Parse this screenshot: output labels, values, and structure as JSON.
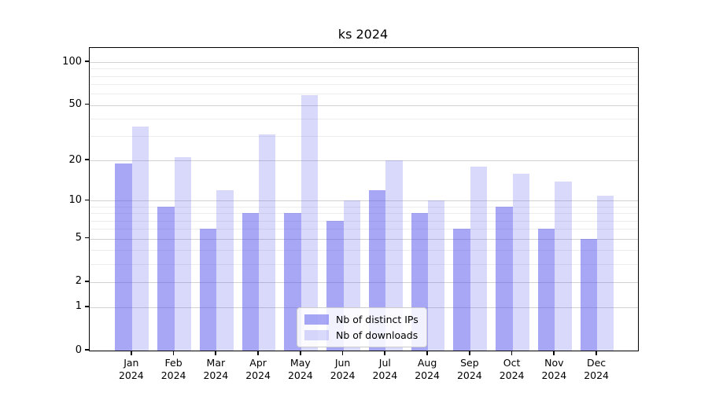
{
  "chart_data": {
    "type": "bar",
    "title": "ks 2024",
    "categories": [
      "Jan 2024",
      "Feb 2024",
      "Mar 2024",
      "Apr 2024",
      "May 2024",
      "Jun 2024",
      "Jul 2024",
      "Aug 2024",
      "Sep 2024",
      "Oct 2024",
      "Nov 2024",
      "Dec 2024"
    ],
    "months": [
      "Jan",
      "Feb",
      "Mar",
      "Apr",
      "May",
      "Jun",
      "Jul",
      "Aug",
      "Sep",
      "Oct",
      "Nov",
      "Dec"
    ],
    "year": "2024",
    "series": [
      {
        "name": "Nb of distinct IPs",
        "color": "rgba(80,80,235,0.5)",
        "values": [
          19,
          9,
          6,
          8,
          8,
          7,
          12,
          8,
          6,
          9,
          6,
          5
        ]
      },
      {
        "name": "Nb of downloads",
        "color": "rgba(80,80,235,0.22)",
        "values": [
          35,
          21,
          12,
          31,
          59,
          10,
          20,
          10,
          18,
          16,
          14,
          11
        ]
      }
    ],
    "yscale": "log1p",
    "ylim": [
      0,
      125
    ],
    "yticks": [
      0,
      1,
      2,
      5,
      10,
      20,
      50,
      100
    ],
    "yticks_minor": [
      3,
      4,
      6,
      7,
      8,
      9,
      30,
      40,
      60,
      70,
      80,
      90
    ],
    "grid": true,
    "legend_position": "lower center",
    "colors": {
      "grid_major": "#d2d2d2",
      "grid_minor": "#ededed",
      "spine": "#000000",
      "legend_border": "#cccccc",
      "text": "#000000"
    }
  }
}
